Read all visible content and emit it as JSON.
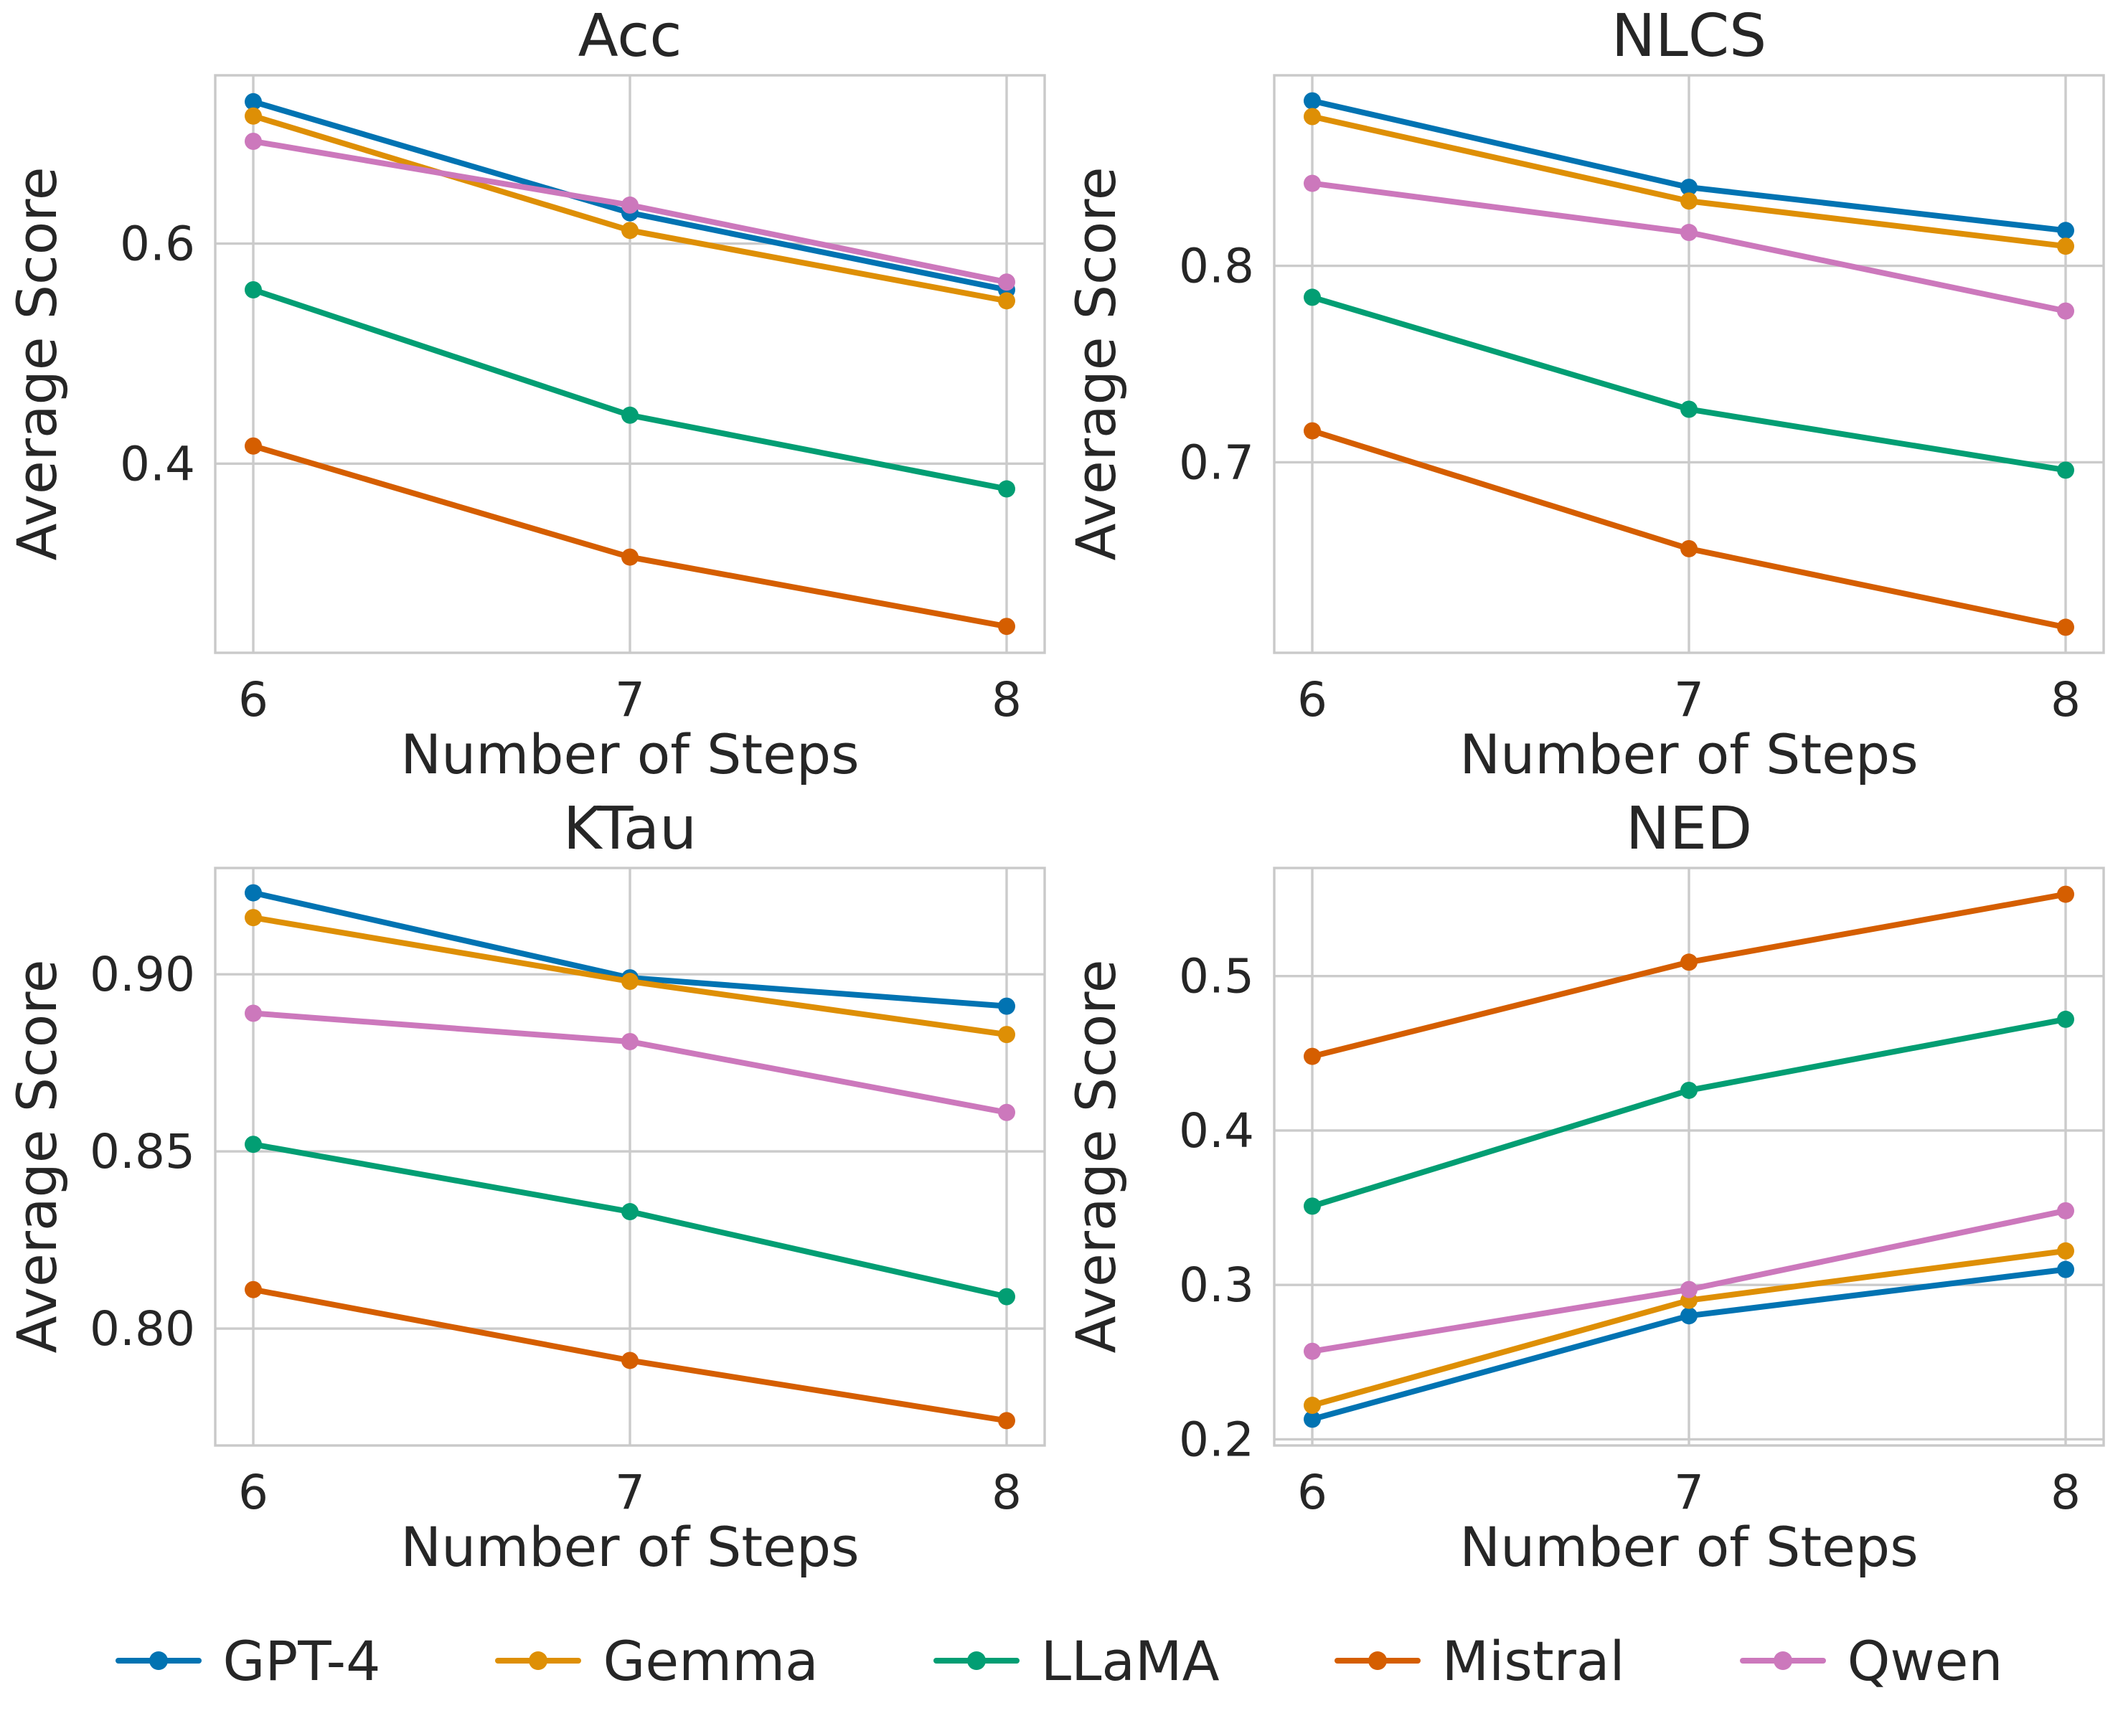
{
  "figure": {
    "xlabel": "Number of Steps",
    "ylabel": "Average Score",
    "x_tick_labels": [
      "6",
      "7",
      "8"
    ]
  },
  "colors": {
    "GPT-4": "#0173b2",
    "Gemma": "#de8f05",
    "LLaMA": "#029e73",
    "Mistral": "#d55e00",
    "Qwen": "#cc78bc",
    "grid": "#cbcbcb",
    "text": "#262626"
  },
  "legend": [
    {
      "label": "GPT-4",
      "color": "#0173b2"
    },
    {
      "label": "Gemma",
      "color": "#de8f05"
    },
    {
      "label": "LLaMA",
      "color": "#029e73"
    },
    {
      "label": "Mistral",
      "color": "#d55e00"
    },
    {
      "label": "Qwen",
      "color": "#cc78bc"
    }
  ],
  "chart_data": [
    {
      "type": "line",
      "title": "Acc",
      "xlabel": "Number of Steps",
      "ylabel": "Average Score",
      "x": [
        6,
        7,
        8
      ],
      "ylim": [
        0.228,
        0.753
      ],
      "yticks": [
        0.4,
        0.6
      ],
      "ytick_labels": [
        "0.4",
        "0.6"
      ],
      "grid": true,
      "legend_position": "figure-bottom",
      "series": [
        {
          "name": "GPT-4",
          "color": "#0173b2",
          "values": [
            0.729,
            0.628,
            0.558
          ]
        },
        {
          "name": "Gemma",
          "color": "#de8f05",
          "values": [
            0.716,
            0.612,
            0.548
          ]
        },
        {
          "name": "LLaMA",
          "color": "#029e73",
          "values": [
            0.558,
            0.444,
            0.377
          ]
        },
        {
          "name": "Mistral",
          "color": "#d55e00",
          "values": [
            0.416,
            0.315,
            0.252
          ]
        },
        {
          "name": "Qwen",
          "color": "#cc78bc",
          "values": [
            0.693,
            0.635,
            0.565
          ]
        }
      ]
    },
    {
      "type": "line",
      "title": "NLCS",
      "xlabel": "Number of Steps",
      "ylabel": "Average Score",
      "x": [
        6,
        7,
        8
      ],
      "ylim": [
        0.603,
        0.897
      ],
      "yticks": [
        0.7,
        0.8
      ],
      "ytick_labels": [
        "0.7",
        "0.8"
      ],
      "grid": true,
      "legend_position": "figure-bottom",
      "series": [
        {
          "name": "GPT-4",
          "color": "#0173b2",
          "values": [
            0.884,
            0.84,
            0.818
          ]
        },
        {
          "name": "Gemma",
          "color": "#de8f05",
          "values": [
            0.876,
            0.833,
            0.81
          ]
        },
        {
          "name": "LLaMA",
          "color": "#029e73",
          "values": [
            0.784,
            0.727,
            0.696
          ]
        },
        {
          "name": "Mistral",
          "color": "#d55e00",
          "values": [
            0.716,
            0.656,
            0.616
          ]
        },
        {
          "name": "Qwen",
          "color": "#cc78bc",
          "values": [
            0.842,
            0.817,
            0.777
          ]
        }
      ]
    },
    {
      "type": "line",
      "title": "KTau",
      "xlabel": "Number of Steps",
      "ylabel": "Average Score",
      "x": [
        6,
        7,
        8
      ],
      "ylim": [
        0.767,
        0.93
      ],
      "yticks": [
        0.8,
        0.85,
        0.9
      ],
      "ytick_labels": [
        "0.80",
        "0.85",
        "0.90"
      ],
      "grid": true,
      "legend_position": "figure-bottom",
      "series": [
        {
          "name": "GPT-4",
          "color": "#0173b2",
          "values": [
            0.923,
            0.899,
            0.891
          ]
        },
        {
          "name": "Gemma",
          "color": "#de8f05",
          "values": [
            0.916,
            0.898,
            0.883
          ]
        },
        {
          "name": "LLaMA",
          "color": "#029e73",
          "values": [
            0.852,
            0.833,
            0.809
          ]
        },
        {
          "name": "Mistral",
          "color": "#d55e00",
          "values": [
            0.811,
            0.791,
            0.774
          ]
        },
        {
          "name": "Qwen",
          "color": "#cc78bc",
          "values": [
            0.889,
            0.881,
            0.861
          ]
        }
      ]
    },
    {
      "type": "line",
      "title": "NED",
      "xlabel": "Number of Steps",
      "ylabel": "Average Score",
      "x": [
        6,
        7,
        8
      ],
      "ylim": [
        0.196,
        0.57
      ],
      "yticks": [
        0.2,
        0.3,
        0.4,
        0.5
      ],
      "ytick_labels": [
        "0.2",
        "0.3",
        "0.4",
        "0.5"
      ],
      "grid": true,
      "legend_position": "figure-bottom",
      "series": [
        {
          "name": "GPT-4",
          "color": "#0173b2",
          "values": [
            0.213,
            0.28,
            0.31
          ]
        },
        {
          "name": "Gemma",
          "color": "#de8f05",
          "values": [
            0.222,
            0.29,
            0.322
          ]
        },
        {
          "name": "LLaMA",
          "color": "#029e73",
          "values": [
            0.351,
            0.426,
            0.472
          ]
        },
        {
          "name": "Mistral",
          "color": "#d55e00",
          "values": [
            0.448,
            0.509,
            0.553
          ]
        },
        {
          "name": "Qwen",
          "color": "#cc78bc",
          "values": [
            0.257,
            0.297,
            0.348
          ]
        }
      ]
    }
  ]
}
